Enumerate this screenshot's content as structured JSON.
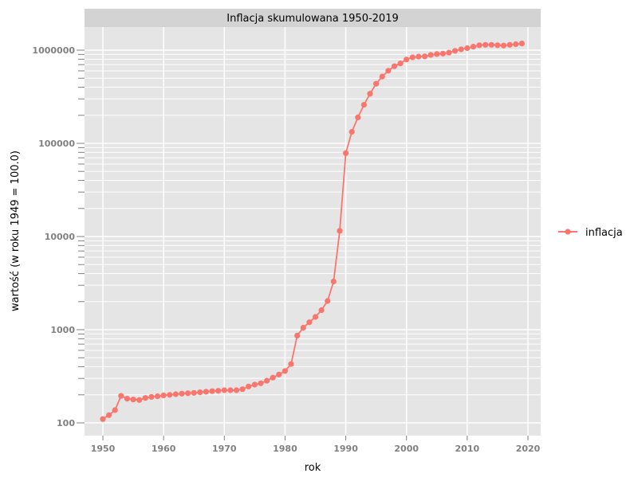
{
  "chart_data": {
    "type": "line",
    "title": "Inflacja skumulowana 1950-2019",
    "xlabel": "rok",
    "ylabel": "wartość (w roku 1949 = 100.0)",
    "xlim": [
      1947,
      2022
    ],
    "ylim": [
      80,
      1700000
    ],
    "yscale": "log",
    "x_ticks": [
      1950,
      1960,
      1970,
      1980,
      1990,
      2000,
      2010,
      2020
    ],
    "x_tick_labels": [
      "1950",
      "1960",
      "1970",
      "1980",
      "1990",
      "2000",
      "2010",
      "2020"
    ],
    "y_ticks": [
      100,
      1000,
      10000,
      100000,
      1000000
    ],
    "y_tick_labels": [
      "100",
      "1000",
      "10000",
      "100000",
      "1000000"
    ],
    "grid": true,
    "legend_position": "right",
    "series": [
      {
        "name": "inflacja",
        "color": "#f8766d",
        "x": [
          1950,
          1951,
          1952,
          1953,
          1954,
          1955,
          1956,
          1957,
          1958,
          1959,
          1960,
          1961,
          1962,
          1963,
          1964,
          1965,
          1966,
          1967,
          1968,
          1969,
          1970,
          1971,
          1972,
          1973,
          1974,
          1975,
          1976,
          1977,
          1978,
          1979,
          1980,
          1981,
          1982,
          1983,
          1984,
          1985,
          1986,
          1987,
          1988,
          1989,
          1990,
          1991,
          1992,
          1993,
          1994,
          1995,
          1996,
          1997,
          1998,
          1999,
          2000,
          2001,
          2002,
          2003,
          2004,
          2005,
          2006,
          2007,
          2008,
          2009,
          2010,
          2011,
          2012,
          2013,
          2014,
          2015,
          2016,
          2017,
          2018,
          2019
        ],
        "values": [
          110,
          121,
          137,
          195,
          182,
          178,
          176,
          185,
          190,
          193,
          197,
          200,
          203,
          206,
          208,
          210,
          213,
          216,
          219,
          221,
          224,
          224,
          224,
          230,
          246,
          257,
          266,
          283,
          306,
          330,
          361,
          427,
          864,
          1050,
          1200,
          1370,
          1620,
          2030,
          3290,
          11500,
          78500,
          133000,
          190000,
          259000,
          341000,
          436000,
          521000,
          602000,
          672000,
          721000,
          794000,
          837000,
          853000,
          858000,
          889000,
          908000,
          918000,
          941000,
          984000,
          1020000,
          1050000,
          1090000,
          1130000,
          1140000,
          1140000,
          1130000,
          1120000,
          1140000,
          1160000,
          1180000
        ]
      }
    ]
  }
}
